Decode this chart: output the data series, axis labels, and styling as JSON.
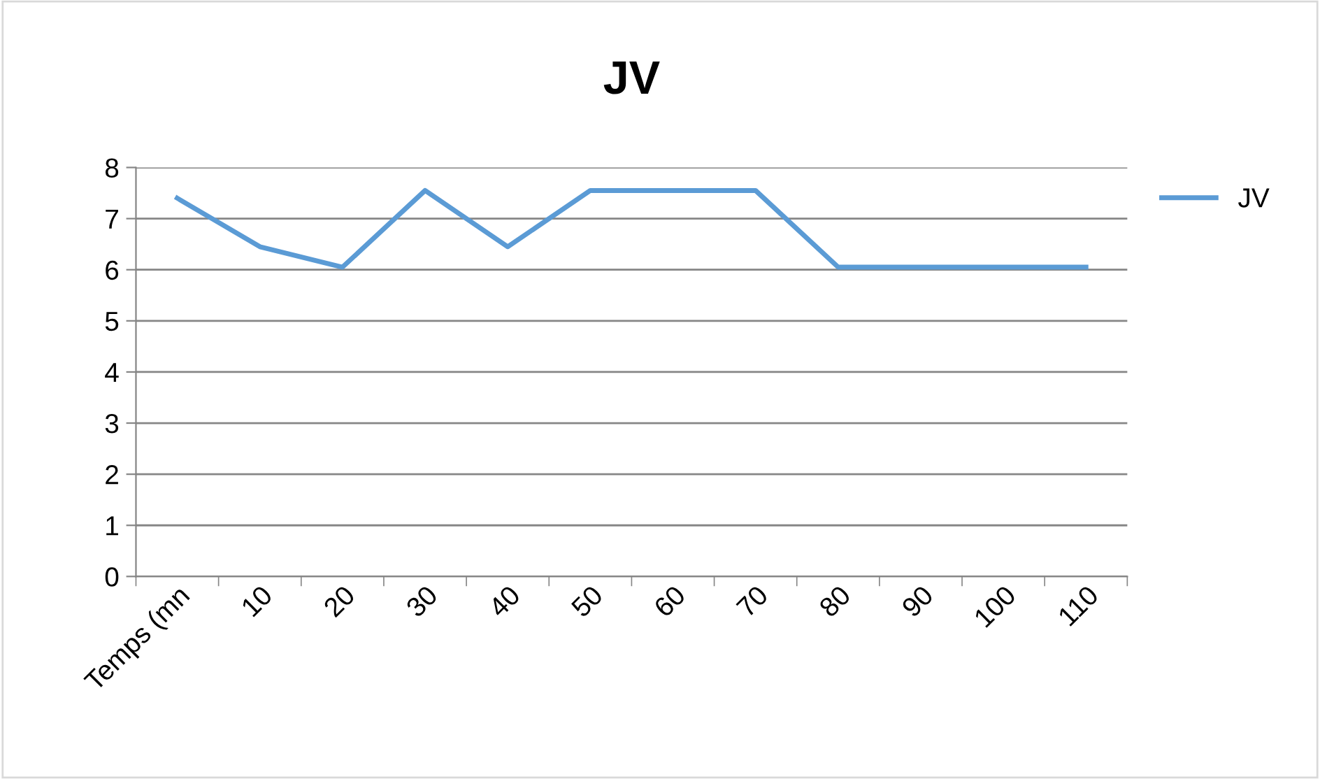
{
  "chart_data": {
    "type": "line",
    "title": "JV",
    "categories": [
      "Temps (mn",
      "10",
      "20",
      "30",
      "40",
      "50",
      "60",
      "70",
      "80",
      "90",
      "100",
      "110"
    ],
    "series": [
      {
        "name": "JV",
        "color": "#5b9bd5",
        "values": [
          7.4,
          6.45,
          6.05,
          7.55,
          6.45,
          7.55,
          7.55,
          7.55,
          6.05,
          6.05,
          6.05,
          6.05
        ]
      }
    ],
    "ylim": [
      0,
      8
    ],
    "yticks": [
      0,
      1,
      2,
      3,
      4,
      5,
      6,
      7,
      8
    ],
    "grid": "y",
    "legend": "right",
    "marker": "none",
    "line_style": "solid"
  }
}
